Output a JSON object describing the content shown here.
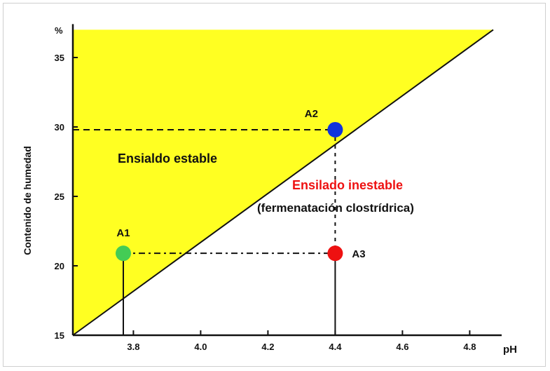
{
  "chart_data": {
    "type": "scatter",
    "title": "",
    "xlabel": "pH",
    "ylabel": "Contenido de humedad",
    "ylabel_unit": "%",
    "xlim": [
      3.62,
      4.92
    ],
    "ylim": [
      15,
      37
    ],
    "x_ticks": [
      "3.8",
      "4.0",
      "4.2",
      "4.4",
      "4.6",
      "4.8"
    ],
    "y_ticks": [
      "15",
      "20",
      "25",
      "30",
      "35"
    ],
    "boundary_line": {
      "x": [
        3.62,
        4.87
      ],
      "y": [
        15,
        37
      ]
    },
    "points": [
      {
        "label": "A1",
        "x": 3.77,
        "y": 20.9,
        "color": "#44cc55"
      },
      {
        "label": "A2",
        "x": 4.4,
        "y": 29.8,
        "color": "#1133dd"
      },
      {
        "label": "A3",
        "x": 4.4,
        "y": 20.9,
        "color": "#ee1111"
      }
    ],
    "regions": {
      "stable_label": "Ensialdo estable",
      "stable_color": "#ffff22",
      "unstable_label": "Ensilado inestable",
      "unstable_color": "#ee1111",
      "unstable_note": "(fermenatación clostrídrica)"
    },
    "grid": false
  }
}
